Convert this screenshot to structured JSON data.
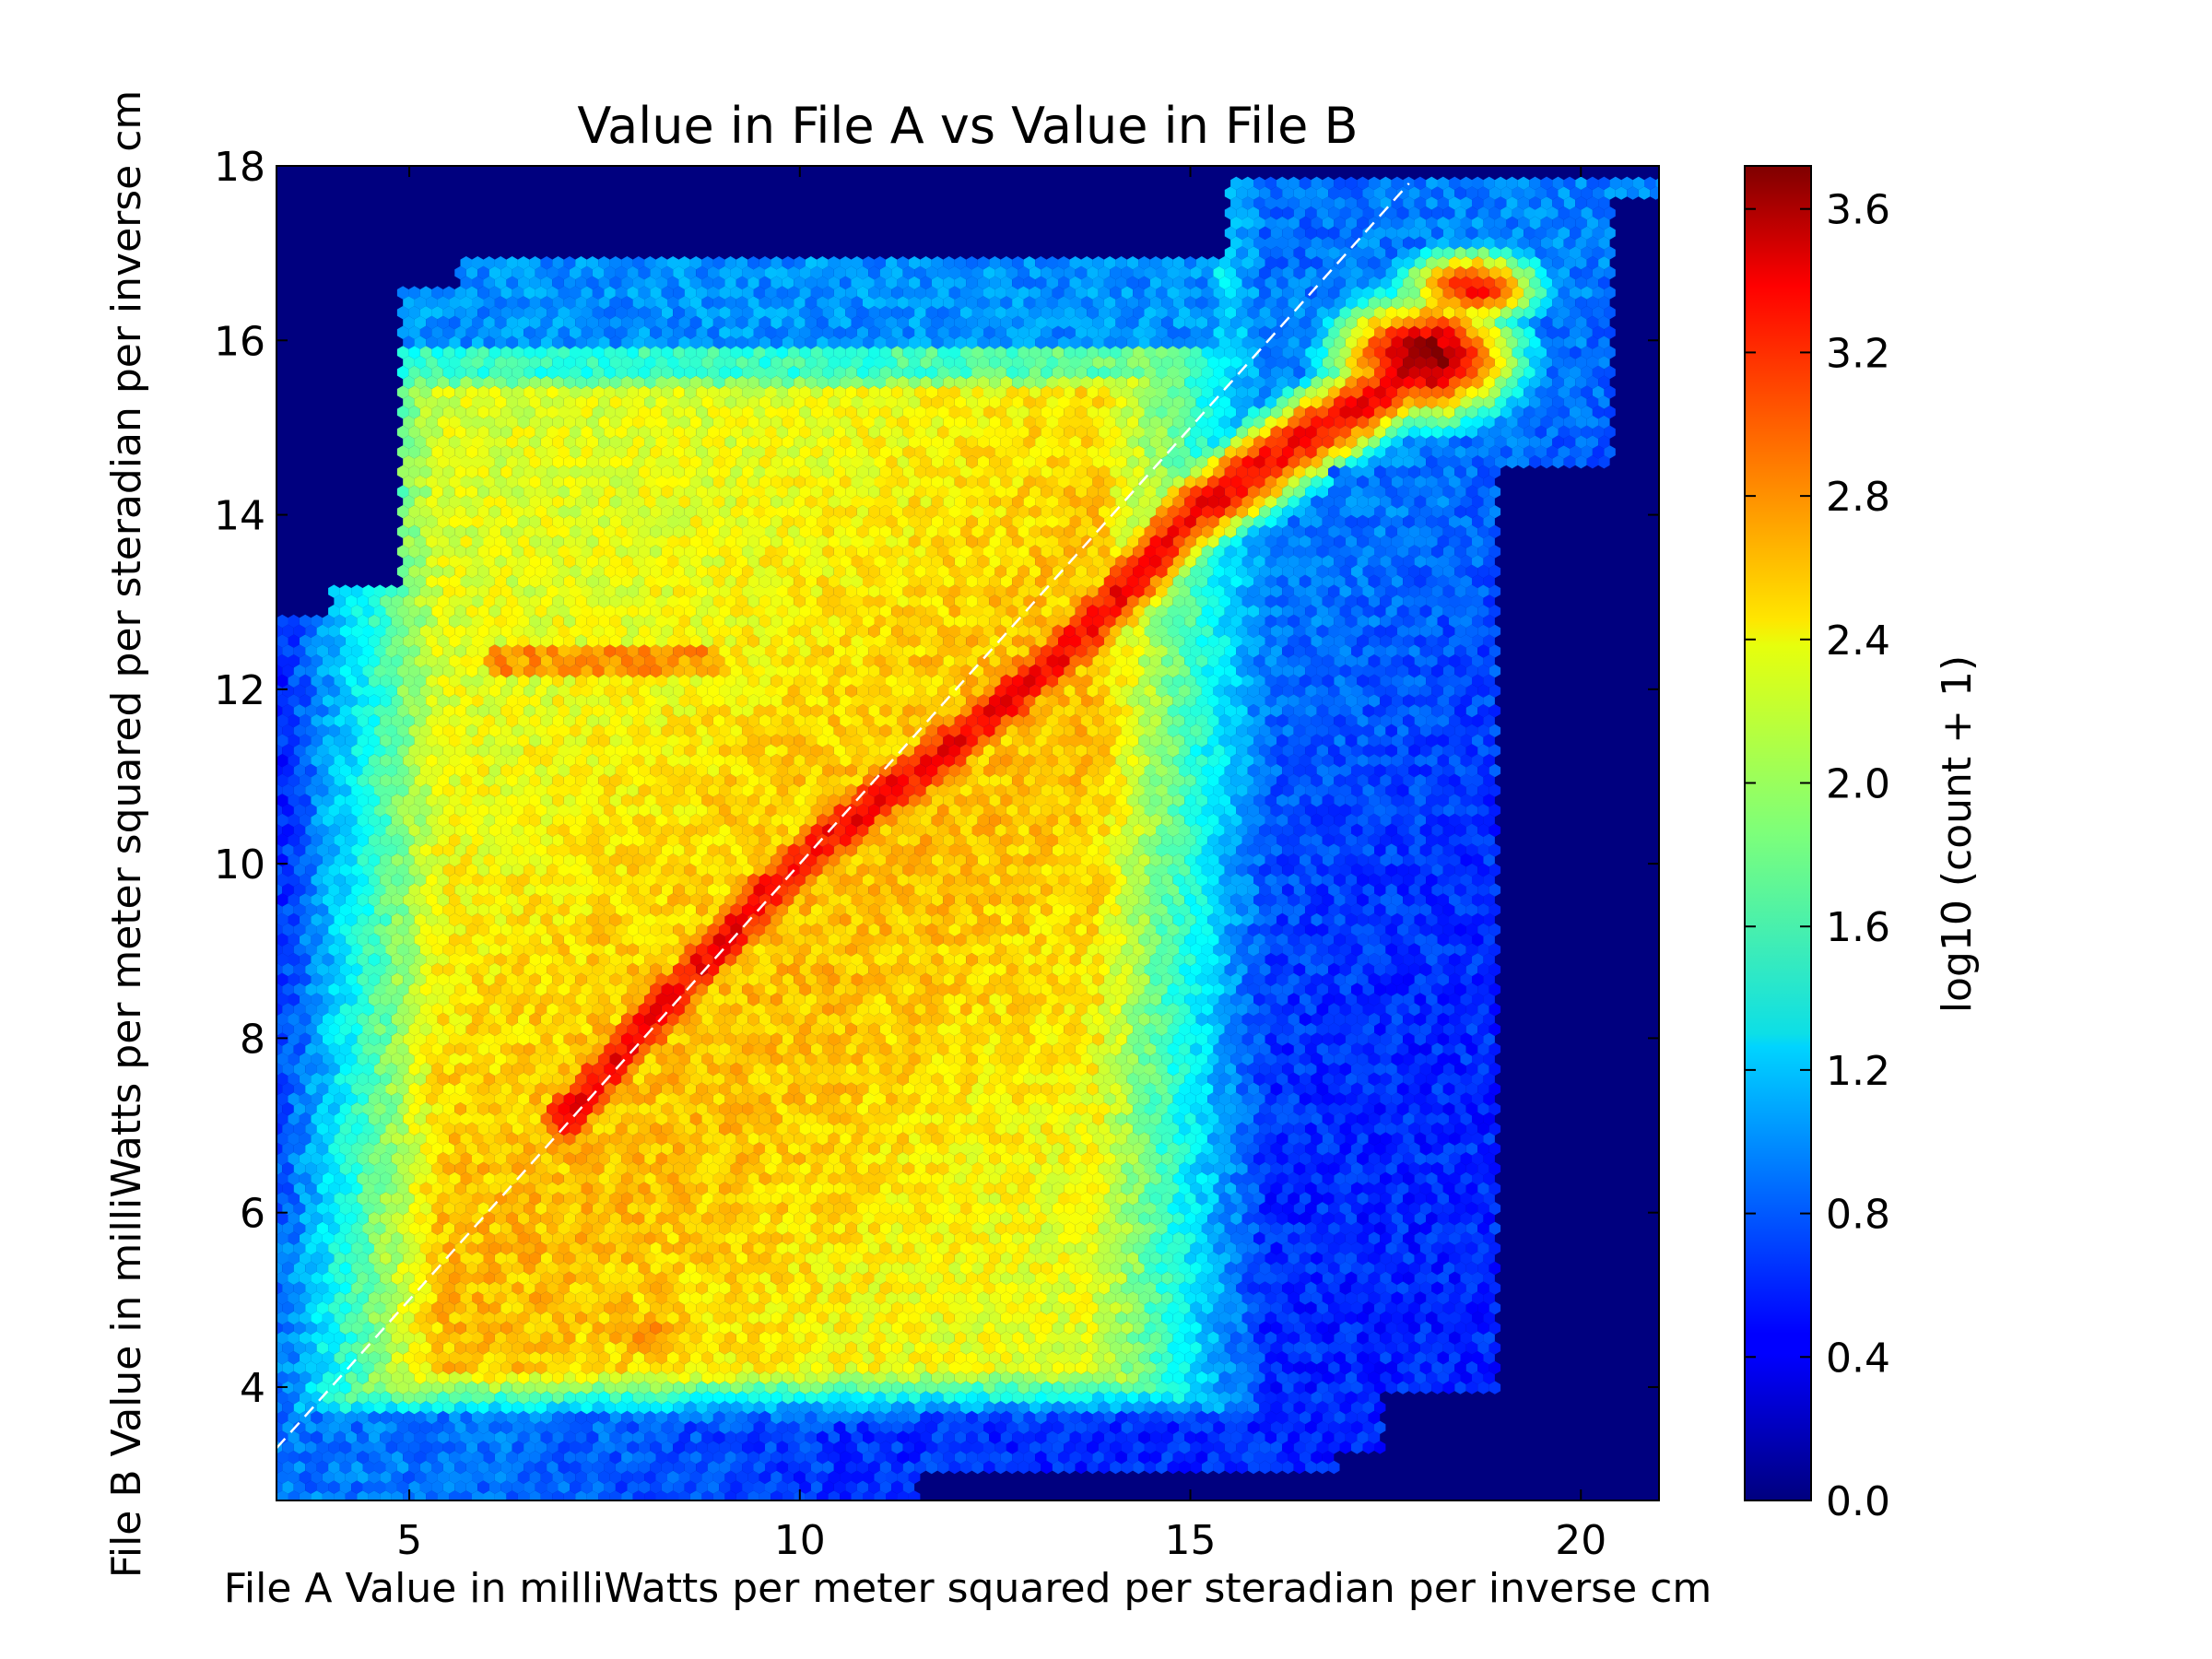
{
  "chart_data": {
    "type": "heatmap",
    "subtype": "hexbin",
    "title": "Value in File A vs Value in File B",
    "xlabel": "File A Value in milliWatts per meter squared per steradian per inverse cm",
    "ylabel": "File B Value in milliWatts per meter squared per steradian per inverse cm",
    "xlim": [
      3.3,
      21.0
    ],
    "ylim": [
      2.7,
      18.0
    ],
    "xticks": [
      5,
      10,
      15,
      20
    ],
    "xtick_labels": [
      "5",
      "10",
      "15",
      "20"
    ],
    "yticks": [
      4,
      6,
      8,
      10,
      12,
      14,
      16,
      18
    ],
    "ytick_labels": [
      "4",
      "6",
      "8",
      "10",
      "12",
      "14",
      "16",
      "18"
    ],
    "grid": false,
    "colormap": "jet",
    "background_color": "#00007f",
    "reference_line": {
      "style": "dashed",
      "color": "#ffffff",
      "x": [
        3.3,
        17.8
      ],
      "y": [
        3.3,
        17.8
      ]
    },
    "colorbar": {
      "label": "log10 (count + 1)",
      "range": [
        0.0,
        3.72
      ],
      "ticks": [
        0.0,
        0.4,
        0.8,
        1.2,
        1.6,
        2.0,
        2.4,
        2.8,
        3.2,
        3.6
      ],
      "tick_labels": [
        "0.0",
        "0.4",
        "0.8",
        "1.2",
        "1.6",
        "2.0",
        "2.4",
        "2.8",
        "3.2",
        "3.6"
      ]
    },
    "density_regions": [
      {
        "description": "main ridge along diagonal",
        "points": [
          [
            7.2,
            7.3
          ],
          [
            9.0,
            9.3
          ],
          [
            10.8,
            10.6
          ],
          [
            12.5,
            11.8
          ],
          [
            13.5,
            12.6
          ],
          [
            15.0,
            14.2
          ],
          [
            16.5,
            15.0
          ]
        ],
        "peak_value": 3.1
      },
      {
        "description": "upper-right maximum",
        "center": [
          18.0,
          15.7
        ],
        "peak_value": 3.72
      },
      {
        "description": "lower-left cluster",
        "center": [
          8.0,
          4.7
        ],
        "peak_value": 2.7
      }
    ]
  }
}
